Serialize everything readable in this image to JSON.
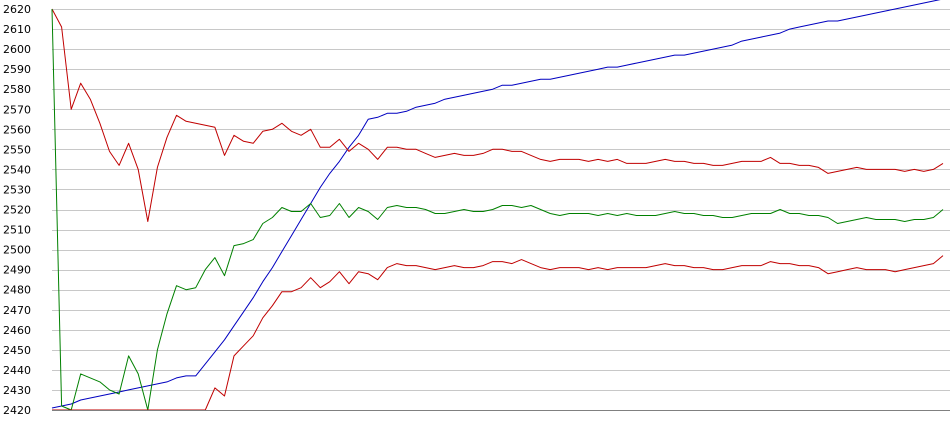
{
  "chart_data": {
    "type": "line",
    "title": "",
    "xlabel": "",
    "ylabel": "",
    "ylim": [
      2420,
      2620
    ],
    "yticks": [
      2420,
      2430,
      2440,
      2450,
      2460,
      2470,
      2480,
      2490,
      2500,
      2510,
      2520,
      2530,
      2540,
      2550,
      2560,
      2570,
      2580,
      2590,
      2600,
      2610,
      2620
    ],
    "yticklabels": [
      "2420",
      "2430",
      "2440",
      "2450",
      "2460",
      "2470",
      "2480",
      "2490",
      "2500",
      "2510",
      "2520",
      "2530",
      "2540",
      "2550",
      "2560",
      "2570",
      "2580",
      "2590",
      "2600",
      "2610",
      "2620"
    ],
    "grid": true,
    "x": [
      0,
      1,
      2,
      3,
      4,
      5,
      6,
      7,
      8,
      9,
      10,
      11,
      12,
      13,
      14,
      15,
      16,
      17,
      18,
      19,
      20,
      21,
      22,
      23,
      24,
      25,
      26,
      27,
      28,
      29,
      30,
      31,
      32,
      33,
      34,
      35,
      36,
      37,
      38,
      39,
      40,
      41,
      42,
      43,
      44,
      45,
      46,
      47,
      48,
      49,
      50,
      51,
      52,
      53,
      54,
      55,
      56,
      57,
      58,
      59,
      60,
      61,
      62,
      63,
      64,
      65,
      66,
      67,
      68,
      69,
      70,
      71,
      72,
      73,
      74,
      75,
      76,
      77,
      78,
      79,
      80,
      81,
      82,
      83,
      84,
      85,
      86,
      87,
      88,
      89,
      90,
      91,
      92,
      93
    ],
    "series": [
      {
        "color": "#0000c0",
        "values": [
          2421,
          2422,
          2423,
          2425,
          2426,
          2427,
          2428,
          2429,
          2430,
          2431,
          2432,
          2433,
          2434,
          2436,
          2437,
          2437,
          2443,
          2449,
          2455,
          2462,
          2469,
          2476,
          2484,
          2491,
          2499,
          2507,
          2515,
          2523,
          2531,
          2538,
          2544,
          2551,
          2557,
          2565,
          2566,
          2568,
          2568,
          2569,
          2571,
          2572,
          2573,
          2575,
          2576,
          2577,
          2578,
          2579,
          2580,
          2582,
          2582,
          2583,
          2584,
          2585,
          2585,
          2586,
          2587,
          2588,
          2589,
          2590,
          2591,
          2591,
          2592,
          2593,
          2594,
          2595,
          2596,
          2597,
          2597,
          2598,
          2599,
          2600,
          2601,
          2602,
          2604,
          2605,
          2606,
          2607,
          2608,
          2610,
          2611,
          2612,
          2613,
          2614,
          2614,
          2615,
          2616,
          2617,
          2618,
          2619,
          2620,
          2621,
          2622,
          2623,
          2624,
          2625
        ]
      },
      {
        "color": "#c00000",
        "values": [
          2620,
          2611,
          2570,
          2583,
          2575,
          2563,
          2549,
          2542,
          2553,
          2540,
          2514,
          2541,
          2556,
          2567,
          2564,
          2563,
          2562,
          2561,
          2547,
          2557,
          2554,
          2553,
          2559,
          2560,
          2563,
          2559,
          2557,
          2560,
          2551,
          2551,
          2555,
          2549,
          2553,
          2550,
          2545,
          2551,
          2551,
          2550,
          2550,
          2548,
          2546,
          2547,
          2548,
          2547,
          2547,
          2548,
          2550,
          2550,
          2549,
          2549,
          2547,
          2545,
          2544,
          2545,
          2545,
          2545,
          2544,
          2545,
          2544,
          2545,
          2543,
          2543,
          2543,
          2544,
          2545,
          2544,
          2544,
          2543,
          2543,
          2542,
          2542,
          2543,
          2544,
          2544,
          2544,
          2546,
          2543,
          2543,
          2542,
          2542,
          2541,
          2538,
          2539,
          2540,
          2541,
          2540,
          2540,
          2540,
          2540,
          2539,
          2540,
          2539,
          2540,
          2543
        ]
      },
      {
        "color": "#008000",
        "values": [
          2620,
          2422,
          2420,
          2438,
          2436,
          2434,
          2430,
          2428,
          2447,
          2438,
          2420,
          2450,
          2468,
          2482,
          2480,
          2481,
          2490,
          2496,
          2487,
          2502,
          2503,
          2505,
          2513,
          2516,
          2521,
          2519,
          2519,
          2523,
          2516,
          2517,
          2523,
          2516,
          2521,
          2519,
          2515,
          2521,
          2522,
          2521,
          2521,
          2520,
          2518,
          2518,
          2519,
          2520,
          2519,
          2519,
          2520,
          2522,
          2522,
          2521,
          2522,
          2520,
          2518,
          2517,
          2518,
          2518,
          2518,
          2517,
          2518,
          2517,
          2518,
          2517,
          2517,
          2517,
          2518,
          2519,
          2518,
          2518,
          2517,
          2517,
          2516,
          2516,
          2517,
          2518,
          2518,
          2518,
          2520,
          2518,
          2518,
          2517,
          2517,
          2516,
          2513,
          2514,
          2515,
          2516,
          2515,
          2515,
          2515,
          2514,
          2515,
          2515,
          2516,
          2520
        ]
      },
      {
        "color": "#c00000",
        "values": [
          2420,
          2420,
          2420,
          2420,
          2420,
          2420,
          2420,
          2420,
          2420,
          2420,
          2420,
          2420,
          2420,
          2420,
          2420,
          2420,
          2420,
          2431,
          2427,
          2447,
          2452,
          2457,
          2466,
          2472,
          2479,
          2479,
          2481,
          2486,
          2481,
          2484,
          2489,
          2483,
          2489,
          2488,
          2485,
          2491,
          2493,
          2492,
          2492,
          2491,
          2490,
          2491,
          2492,
          2491,
          2491,
          2492,
          2494,
          2494,
          2493,
          2495,
          2493,
          2491,
          2490,
          2491,
          2491,
          2491,
          2490,
          2491,
          2490,
          2491,
          2491,
          2491,
          2491,
          2492,
          2493,
          2492,
          2492,
          2491,
          2491,
          2490,
          2490,
          2491,
          2492,
          2492,
          2492,
          2494,
          2493,
          2493,
          2492,
          2492,
          2491,
          2488,
          2489,
          2490,
          2491,
          2490,
          2490,
          2490,
          2489,
          2490,
          2491,
          2492,
          2493,
          2497
        ]
      }
    ]
  }
}
